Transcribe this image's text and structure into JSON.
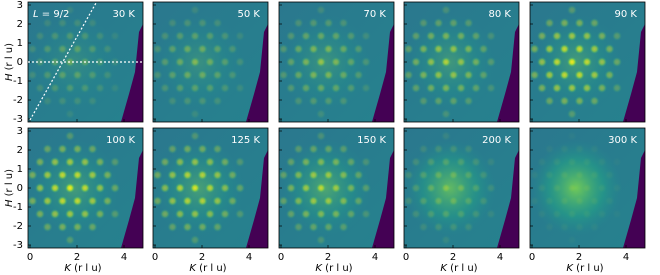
{
  "figure": {
    "panels": [
      {
        "label": "30 K"
      },
      {
        "label": "50 K"
      },
      {
        "label": "70 K"
      },
      {
        "label": "80 K"
      },
      {
        "label": "90 K"
      },
      {
        "label": "100 K"
      },
      {
        "label": "125 K"
      },
      {
        "label": "150 K"
      },
      {
        "label": "200 K"
      },
      {
        "label": "300 K"
      }
    ],
    "annotation": {
      "symbol": "L",
      "text": "= 9/2"
    },
    "y_axis": {
      "symbol": "H",
      "unit": "(r l u)",
      "ticks": [
        "3",
        "2",
        "1",
        "0",
        "-1",
        "-2",
        "-3"
      ]
    },
    "x_axis": {
      "symbol": "K",
      "unit": "(r l u)",
      "ticks": [
        "0",
        "2",
        "4"
      ]
    }
  }
}
